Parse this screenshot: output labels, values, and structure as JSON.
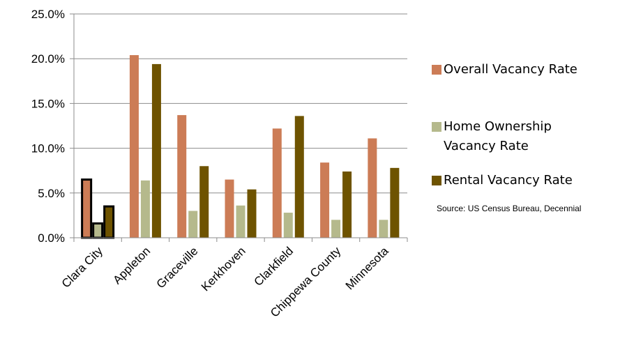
{
  "chart_data": {
    "type": "bar",
    "categories": [
      "Clara City",
      "Appleton",
      "Graceville",
      "Kerkhoven",
      "Clarkfield",
      "Chippewa County",
      "Minnesota"
    ],
    "series": [
      {
        "name": "Overall Vacancy Rate",
        "color": "#cc7c56",
        "values": [
          6.5,
          20.4,
          13.7,
          6.5,
          12.2,
          8.4,
          11.1
        ]
      },
      {
        "name": "Home Ownership Vacancy Rate",
        "color": "#b5b98c",
        "values": [
          1.6,
          6.4,
          3.0,
          3.6,
          2.8,
          2.0,
          2.0
        ]
      },
      {
        "name": "Rental Vacancy Rate",
        "color": "#6e5300",
        "values": [
          3.5,
          19.4,
          8.0,
          5.4,
          13.6,
          7.4,
          7.8
        ]
      }
    ],
    "highlighted_category": "Clara City",
    "ylim": [
      0,
      25
    ],
    "yticks": [
      "0.0%",
      "5.0%",
      "10.0%",
      "15.0%",
      "20.0%",
      "25.0%"
    ],
    "ytick_values": [
      0,
      5,
      10,
      15,
      20,
      25
    ],
    "grid": true,
    "legend": "right",
    "source": "Source: US Census Bureau, Decennial"
  }
}
